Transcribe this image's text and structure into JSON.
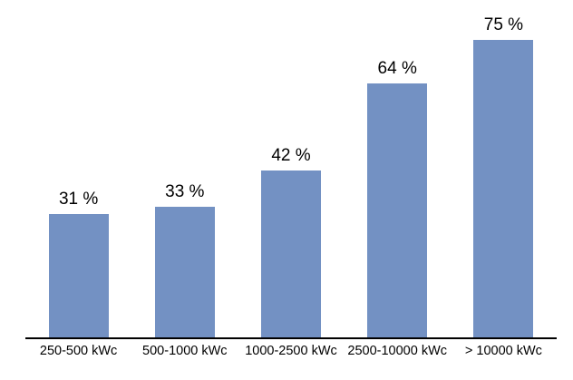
{
  "chart": {
    "bar_color": "#7391C3",
    "axis_line_color": "#000000",
    "text_color": "#000000",
    "background_color": "#ffffff"
  },
  "chart_data": {
    "type": "bar",
    "categories": [
      "250-500 kWc",
      "500-1000 kWc",
      "1000-2500 kWc",
      "2500-10000 kWc",
      "> 10000 kWc"
    ],
    "values": [
      31,
      33,
      42,
      64,
      75
    ],
    "data_labels": [
      "31 %",
      "33 %",
      "42 %",
      "64 %",
      "75 %"
    ],
    "title": "",
    "xlabel": "",
    "ylabel": "",
    "ylim": [
      0,
      85
    ],
    "grid": false,
    "legend": false
  }
}
